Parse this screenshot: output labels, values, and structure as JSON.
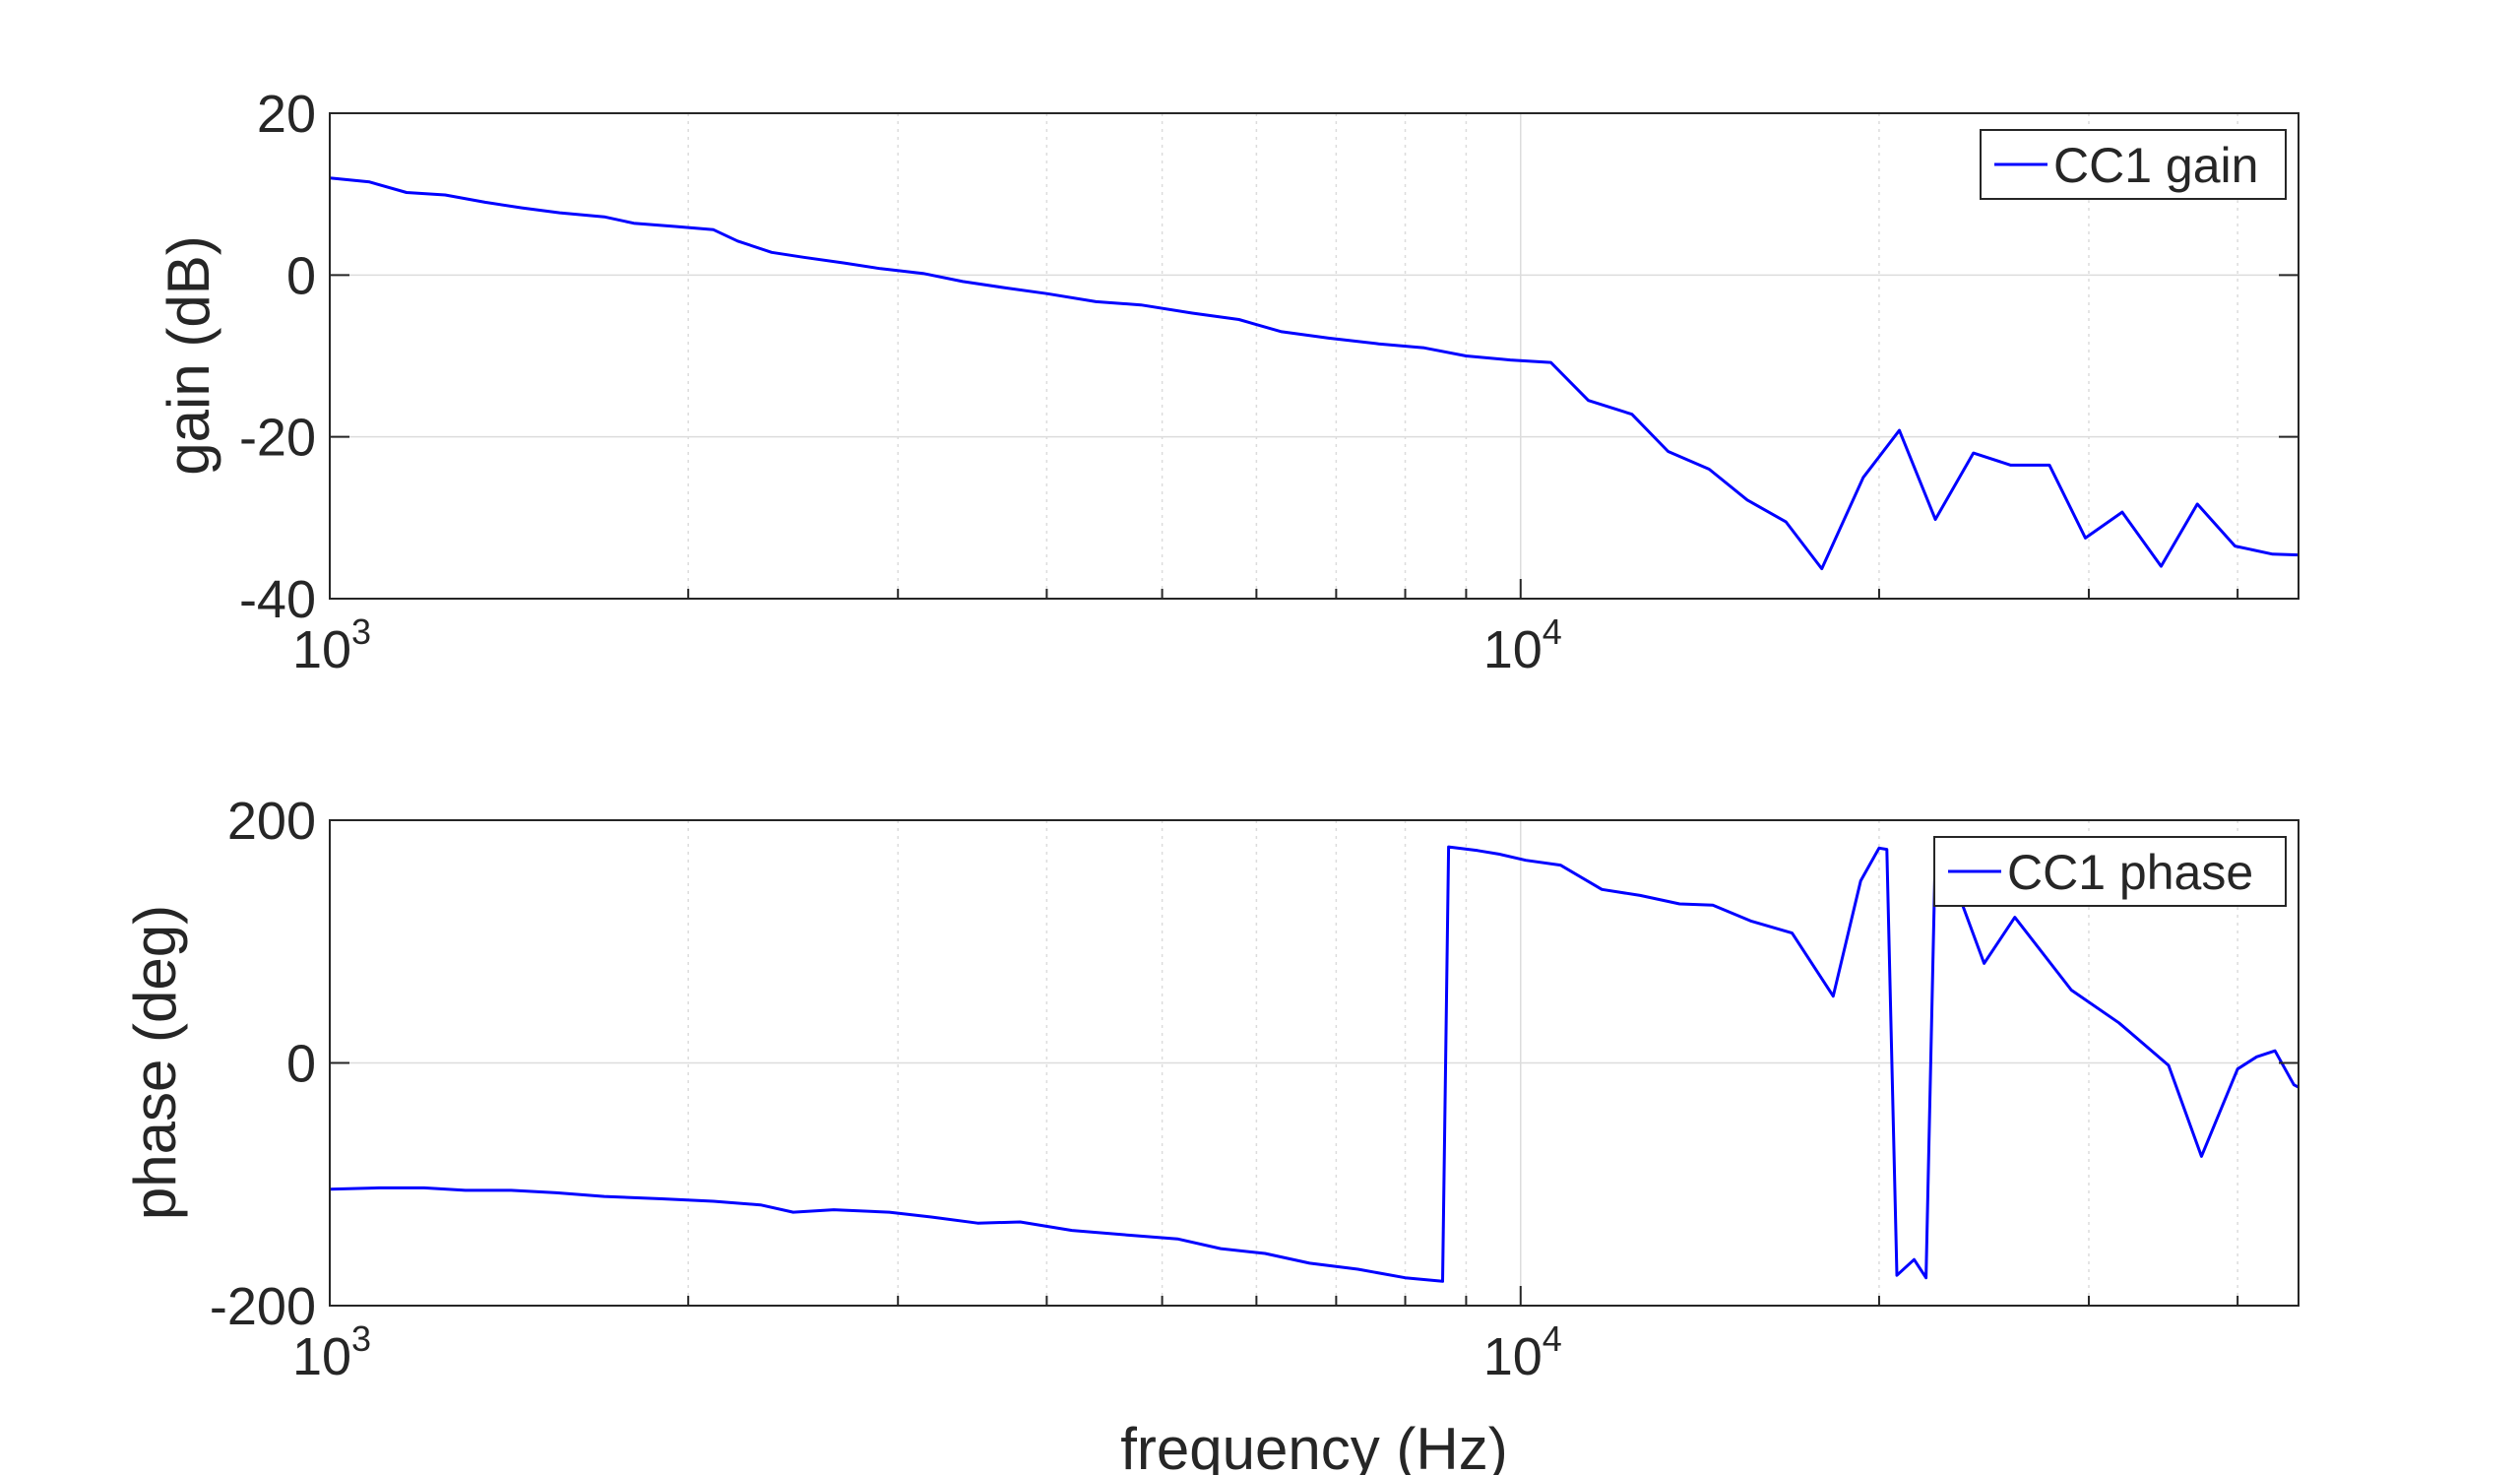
{
  "colors": {
    "series": "#0000ff",
    "axes": "#262626",
    "grid": "#dcdcdc",
    "background": "#ffffff"
  },
  "chart_data": [
    {
      "type": "line",
      "xscale": "log",
      "grid": true,
      "legend_position": "top-right",
      "xlim": [
        1000,
        45000
      ],
      "ylim": [
        -40,
        20
      ],
      "yticks": [
        -40,
        -20,
        0,
        20
      ],
      "ytick_labels": [
        "-40",
        "-20",
        "0",
        "20"
      ],
      "xticks": [
        1000,
        10000
      ],
      "xtick_labels": [
        {
          "base": "10",
          "exp": "3"
        },
        {
          "base": "10",
          "exp": "4"
        }
      ],
      "xlabel": "",
      "ylabel": "gain (dB)",
      "series": [
        {
          "name": "CC1 gain",
          "x": [
            1000,
            1080,
            1160,
            1250,
            1350,
            1450,
            1560,
            1700,
            1800,
            1950,
            2100,
            2200,
            2350,
            2500,
            2700,
            2900,
            3150,
            3400,
            3700,
            4000,
            4400,
            4800,
            5300,
            5800,
            6300,
            6900,
            7600,
            8300,
            9000,
            9800,
            10600,
            11400,
            12400,
            13300,
            14400,
            15500,
            16700,
            17900,
            19400,
            20800,
            22300,
            24000,
            25800,
            27800,
            29800,
            32000,
            34500,
            37000,
            39800,
            42800,
            45000
          ],
          "y": [
            12,
            11.5,
            10.2,
            9.9,
            9,
            8.3,
            7.7,
            7.2,
            6.4,
            6,
            5.6,
            4.2,
            2.8,
            2.2,
            1.5,
            0.8,
            0.2,
            -0.8,
            -1.6,
            -2.3,
            -3.3,
            -3.7,
            -4.7,
            -5.5,
            -7,
            -7.8,
            -8.5,
            -9,
            -10,
            -10.5,
            -10.8,
            -15.5,
            -17.2,
            -21.8,
            -24,
            -27.8,
            -30.5,
            -36.3,
            -25,
            -19.2,
            -30.2,
            -22,
            -23.5,
            -23.5,
            -32.5,
            -29.3,
            -36,
            -28.3,
            -33.5,
            -34.5,
            -34.6
          ]
        }
      ]
    },
    {
      "type": "line",
      "xscale": "log",
      "grid": true,
      "legend_position": "top-right",
      "xlim": [
        1000,
        45000
      ],
      "ylim": [
        -200,
        200
      ],
      "yticks": [
        -200,
        0,
        200
      ],
      "ytick_labels": [
        "-200",
        "0",
        "200"
      ],
      "xticks": [
        1000,
        10000
      ],
      "xtick_labels": [
        {
          "base": "10",
          "exp": "3"
        },
        {
          "base": "10",
          "exp": "4"
        }
      ],
      "xlabel": "frequency (Hz)",
      "ylabel": "phase (deg)",
      "series": [
        {
          "name": "CC1 phase",
          "x": [
            1000,
            1100,
            1200,
            1300,
            1420,
            1550,
            1700,
            1900,
            2100,
            2300,
            2450,
            2650,
            2950,
            3200,
            3500,
            3800,
            4200,
            4700,
            5150,
            5600,
            6100,
            6650,
            7300,
            8000,
            8600,
            8700,
            9200,
            9600,
            10100,
            10800,
            11700,
            12600,
            13600,
            14500,
            15600,
            16900,
            18300,
            19300,
            20000,
            20300,
            20700,
            21400,
            21900,
            22300,
            22700,
            24500,
            26000,
            29000,
            31800,
            35000,
            37300,
            40000,
            41500,
            43000,
            44600,
            45000
          ],
          "y": [
            -104,
            -103,
            -103,
            -105,
            -105,
            -107,
            -110,
            -112,
            -114,
            -117,
            -123,
            -121,
            -123,
            -127,
            -132,
            -131,
            -138,
            -142,
            -145,
            -153,
            -157,
            -165,
            -170,
            -177,
            -180,
            178,
            175,
            172,
            167,
            163,
            143,
            138,
            131,
            130,
            117,
            107,
            55,
            150,
            177,
            176,
            -175,
            -162,
            -177,
            176,
            170,
            82,
            120,
            60,
            33,
            -2,
            -77,
            -5,
            5,
            10,
            -18,
            -20
          ]
        }
      ]
    }
  ]
}
